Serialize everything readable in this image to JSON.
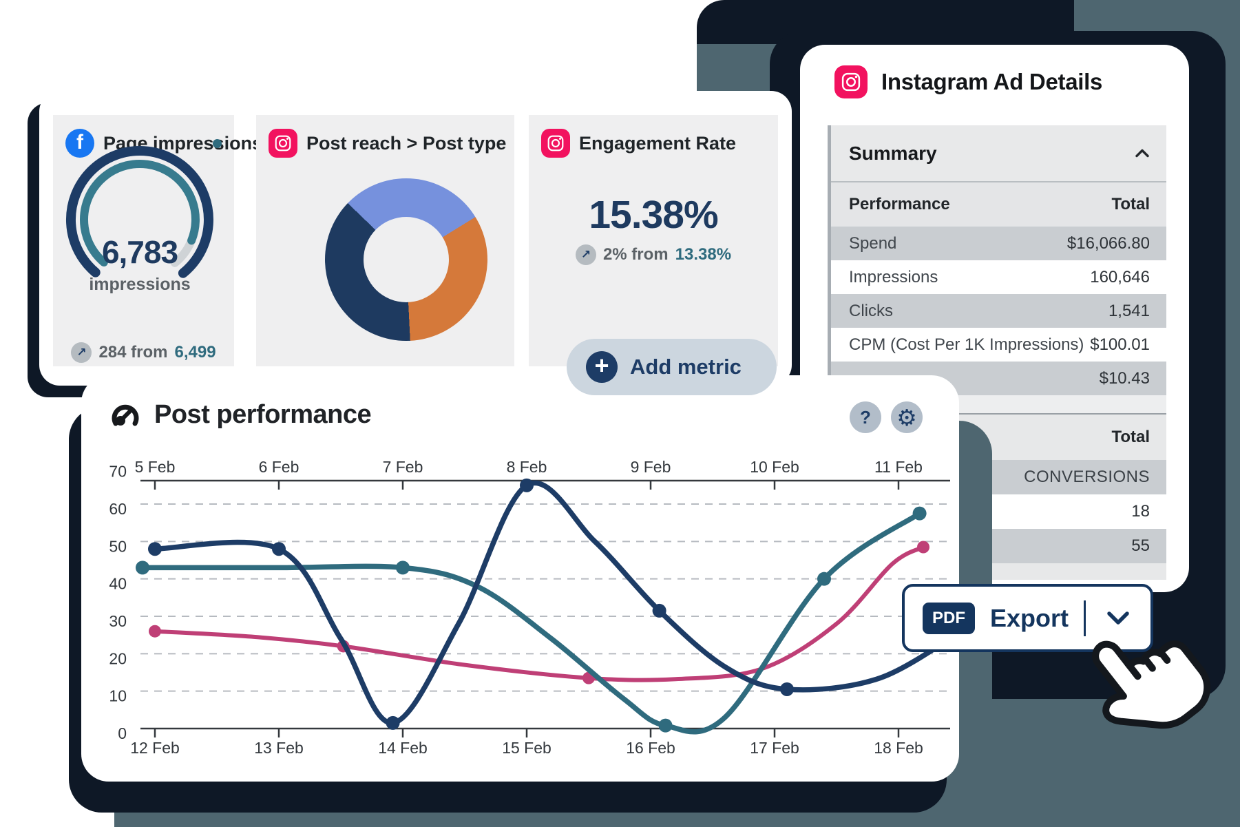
{
  "colors": {
    "accent_navy": "#1d3c66",
    "shadow_navy": "#0e1826",
    "slate_decoration": "#4e6670",
    "tile_background": "#efeff0",
    "teal": "#2f6b7e",
    "pink": "#bf3f76",
    "facebook_blue": "#1877f2",
    "instagram_pink": "#f2125f",
    "table_row_dark": "#c9cdd1",
    "table_row_light": "#e7e8e9",
    "gridline_gray": "#b6bac0"
  },
  "icons": {
    "trend_up_char": "↗",
    "gear_char": "⚙",
    "help_char": "?",
    "plus_char": "+",
    "facebook_char": "f"
  },
  "metrics_card": {
    "tiles": [
      {
        "id": "page-impressions",
        "icon": "facebook",
        "title": "Page impressions"
      },
      {
        "id": "post-reach",
        "icon": "instagram",
        "title": "Post reach > Post type"
      },
      {
        "id": "engagement-rate",
        "icon": "instagram",
        "title": "Engagement Rate",
        "big_value": "15.38%",
        "delta_text": "2% from",
        "delta_reference": "13.38%"
      }
    ],
    "add_metric_label": "Add metric"
  },
  "instagram_panel": {
    "title": "Instagram Ad Details",
    "table": {
      "section_title": "Summary",
      "col_performance": "Performance",
      "col_total": "Total",
      "rows": [
        {
          "label": "Spend",
          "value": "$16,066.80",
          "shade": "dark"
        },
        {
          "label": "Impressions",
          "value": "160,646",
          "shade": "white"
        },
        {
          "label": "Clicks",
          "value": "1,541",
          "shade": "dark"
        },
        {
          "label": "CPM (Cost Per 1K Impressions)",
          "value": "$100.01",
          "shade": "white"
        },
        {
          "label": "",
          "value": "$10.43",
          "shade": "dark"
        }
      ],
      "section2_col_total": "Total",
      "rows2": [
        {
          "value": "CONVERSIONS",
          "kind": "conv",
          "shade": "dark"
        },
        {
          "value": "18",
          "kind": "num",
          "shade": "white"
        },
        {
          "value": "55",
          "kind": "num",
          "shade": "dark"
        }
      ]
    }
  },
  "post_performance": {
    "title": "Post performance"
  },
  "export_button": {
    "badge": "PDF",
    "label": "Export"
  },
  "chart_data": [
    {
      "type": "gauge",
      "title": "Page impressions",
      "value": 6783,
      "value_label": "6,783",
      "unit": "impressions",
      "delta_text": "284 from",
      "delta_reference": "6,499",
      "arcs": {
        "outer_color": "#1d3c66",
        "inner_color": "#377b8e",
        "remainder_color": "#cfd3d6",
        "start_deg": 230,
        "outer_end_deg": 309,
        "inner_end_deg": 338,
        "remainder_end_deg": 309
      }
    },
    {
      "type": "donut",
      "title": "Post reach > Post type",
      "start_deg": -46,
      "slices": [
        {
          "label": "slice-blue",
          "value": 29,
          "color": "#7691dd"
        },
        {
          "label": "slice-orange",
          "value": 33,
          "color": "#d5793a"
        },
        {
          "label": "slice-navy",
          "value": 38,
          "color": "#1e3a60"
        }
      ]
    },
    {
      "type": "line",
      "title": "Post performance",
      "ylim": [
        0,
        70
      ],
      "y_ticks": [
        70,
        60,
        50,
        40,
        30,
        20,
        10,
        0
      ],
      "grid": "dashed-horizontal",
      "x_axis_top_labels": [
        "5 Feb",
        "6 Feb",
        "7 Feb",
        "8 Feb",
        "9 Feb",
        "10 Feb",
        "11 Feb"
      ],
      "x_axis_bottom_labels": [
        "12 Feb",
        "13 Feb",
        "14 Feb",
        "15 Feb",
        "16 Feb",
        "17 Feb",
        "18 Feb"
      ],
      "series": [
        {
          "name": "series-pink",
          "color": "#bf3f76",
          "width": 6,
          "dot_radius": 9,
          "points": [
            [
              0,
              26
            ],
            [
              0.8,
              24.5
            ],
            [
              1.52,
              22
            ],
            [
              2.5,
              17
            ],
            [
              3.5,
              13.5
            ],
            [
              4.2,
              13.2
            ],
            [
              4.9,
              16
            ],
            [
              5.5,
              28
            ],
            [
              5.95,
              44
            ],
            [
              6.2,
              48.5
            ]
          ],
          "dots": [
            [
              0,
              26
            ],
            [
              1.52,
              22
            ],
            [
              3.5,
              13.5
            ],
            [
              6.2,
              48.5
            ]
          ]
        },
        {
          "name": "series-teal",
          "color": "#2f6b7e",
          "width": 7.5,
          "dot_radius": 10,
          "points": [
            [
              -0.1,
              43
            ],
            [
              1,
              43
            ],
            [
              2,
              43
            ],
            [
              2.6,
              38
            ],
            [
              3.2,
              24
            ],
            [
              3.78,
              8
            ],
            [
              4.12,
              0.8
            ],
            [
              4.6,
              3
            ],
            [
              5.4,
              40
            ],
            [
              6.17,
              57.5
            ]
          ],
          "dots": [
            [
              -0.1,
              43
            ],
            [
              2,
              43
            ],
            [
              4.12,
              0.8
            ],
            [
              5.4,
              40
            ],
            [
              6.17,
              57.5
            ]
          ]
        },
        {
          "name": "series-navy",
          "color": "#1d3c66",
          "width": 7.5,
          "dot_radius": 10,
          "points": [
            [
              0,
              48
            ],
            [
              1,
              48
            ],
            [
              1.5,
              24
            ],
            [
              1.92,
              1.5
            ],
            [
              2.45,
              28
            ],
            [
              3,
              65
            ],
            [
              3.55,
              50
            ],
            [
              4.07,
              31.5
            ],
            [
              4.6,
              16.5
            ],
            [
              5.1,
              10.5
            ],
            [
              5.85,
              13.5
            ],
            [
              6.55,
              27
            ]
          ],
          "dots": [
            [
              0,
              48
            ],
            [
              1,
              48
            ],
            [
              1.92,
              1.5
            ],
            [
              3,
              65
            ],
            [
              4.07,
              31.5
            ],
            [
              5.1,
              10.5
            ]
          ]
        }
      ]
    }
  ]
}
